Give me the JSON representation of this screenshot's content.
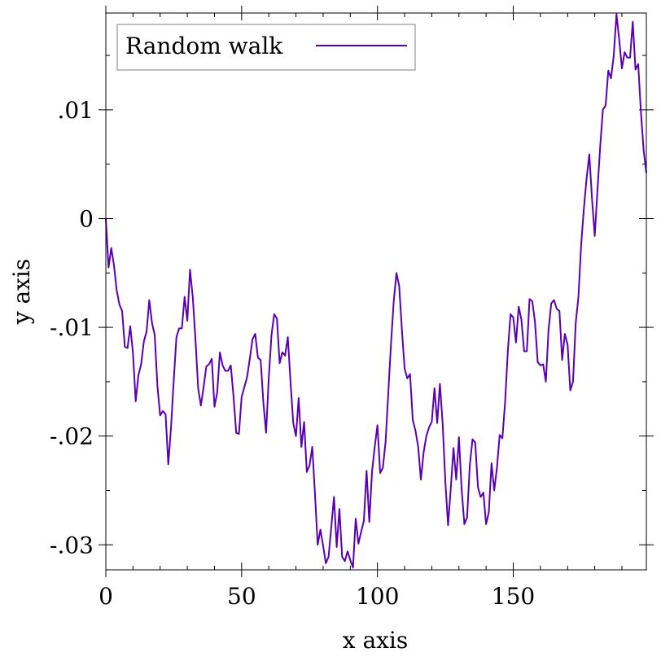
{
  "chart_data": {
    "type": "line",
    "title": "",
    "xlabel": "x axis",
    "ylabel": "y axis",
    "xlim": [
      0,
      199
    ],
    "ylim": [
      -0.0323,
      0.0189
    ],
    "x_ticks": [
      0,
      50,
      100,
      150
    ],
    "x_tick_labels": [
      "0",
      "50",
      "100",
      "150"
    ],
    "x_minor_ticks": [
      10,
      20,
      30,
      40,
      60,
      70,
      80,
      90,
      110,
      120,
      130,
      140,
      160,
      170,
      180,
      190
    ],
    "y_ticks": [
      -0.03,
      -0.02,
      -0.01,
      0,
      0.01
    ],
    "y_tick_labels": [
      "-.03",
      "-.02",
      "-.01",
      "0",
      ".01"
    ],
    "y_minor_ticks": [
      -0.025,
      -0.015,
      -0.005,
      0.005,
      0.015
    ],
    "grid": false,
    "legend_position": "top-left",
    "series": [
      {
        "name": "Random walk",
        "color": "#5a00b4",
        "x": [
          0,
          1,
          2,
          3,
          4,
          5,
          6,
          7,
          8,
          9,
          10,
          11,
          12,
          13,
          14,
          15,
          16,
          17,
          18,
          19,
          20,
          21,
          22,
          23,
          24,
          25,
          26,
          27,
          28,
          29,
          30,
          31,
          32,
          33,
          34,
          35,
          36,
          37,
          38,
          39,
          40,
          41,
          42,
          43,
          44,
          45,
          46,
          47,
          48,
          49,
          50,
          51,
          52,
          53,
          54,
          55,
          56,
          57,
          58,
          59,
          60,
          61,
          62,
          63,
          64,
          65,
          66,
          67,
          68,
          69,
          70,
          71,
          72,
          73,
          74,
          75,
          76,
          77,
          78,
          79,
          80,
          81,
          82,
          83,
          84,
          85,
          86,
          87,
          88,
          89,
          90,
          91,
          92,
          93,
          94,
          95,
          96,
          97,
          98,
          99,
          100,
          101,
          102,
          103,
          104,
          105,
          106,
          107,
          108,
          109,
          110,
          111,
          112,
          113,
          114,
          115,
          116,
          117,
          118,
          119,
          120,
          121,
          122,
          123,
          124,
          125,
          126,
          127,
          128,
          129,
          130,
          131,
          132,
          133,
          134,
          135,
          136,
          137,
          138,
          139,
          140,
          141,
          142,
          143,
          144,
          145,
          146,
          147,
          148,
          149,
          150,
          151,
          152,
          153,
          154,
          155,
          156,
          157,
          158,
          159,
          160,
          161,
          162,
          163,
          164,
          165,
          166,
          167,
          168,
          169,
          170,
          171,
          172,
          173,
          174,
          175,
          176,
          177,
          178,
          179,
          180,
          181,
          182,
          183,
          184,
          185,
          186,
          187,
          188,
          189,
          190,
          191,
          192,
          193,
          194,
          195,
          196,
          197,
          198,
          199
        ],
        "y": [
          0,
          -0.0045,
          -0.0027,
          -0.0043,
          -0.0066,
          -0.0079,
          -0.0085,
          -0.0118,
          -0.0119,
          -0.0099,
          -0.0124,
          -0.0168,
          -0.0144,
          -0.0134,
          -0.0113,
          -0.0104,
          -0.0075,
          -0.0096,
          -0.0107,
          -0.0154,
          -0.0181,
          -0.0177,
          -0.018,
          -0.0226,
          -0.0192,
          -0.0149,
          -0.0109,
          -0.0101,
          -0.0101,
          -0.0072,
          -0.0094,
          -0.0047,
          -0.0072,
          -0.0111,
          -0.0156,
          -0.0172,
          -0.0155,
          -0.0136,
          -0.0134,
          -0.0129,
          -0.0173,
          -0.016,
          -0.0123,
          -0.0135,
          -0.014,
          -0.014,
          -0.0135,
          -0.0163,
          -0.0197,
          -0.0198,
          -0.0164,
          -0.0155,
          -0.0146,
          -0.0129,
          -0.0111,
          -0.0106,
          -0.0128,
          -0.013,
          -0.0169,
          -0.0197,
          -0.0146,
          -0.0107,
          -0.0088,
          -0.0092,
          -0.0133,
          -0.0123,
          -0.0126,
          -0.0109,
          -0.015,
          -0.0188,
          -0.02,
          -0.0165,
          -0.021,
          -0.0187,
          -0.0233,
          -0.0227,
          -0.021,
          -0.0253,
          -0.03,
          -0.0286,
          -0.0301,
          -0.0317,
          -0.0311,
          -0.0284,
          -0.0256,
          -0.0302,
          -0.0267,
          -0.0311,
          -0.0315,
          -0.0306,
          -0.0314,
          -0.0321,
          -0.0276,
          -0.0299,
          -0.0288,
          -0.0278,
          -0.0232,
          -0.0279,
          -0.0233,
          -0.021,
          -0.019,
          -0.0234,
          -0.0229,
          -0.0205,
          -0.016,
          -0.0115,
          -0.0076,
          -0.005,
          -0.0062,
          -0.0102,
          -0.0138,
          -0.0147,
          -0.0143,
          -0.0185,
          -0.0195,
          -0.021,
          -0.024,
          -0.0215,
          -0.02,
          -0.0192,
          -0.0187,
          -0.0156,
          -0.0188,
          -0.0152,
          -0.0188,
          -0.0242,
          -0.0282,
          -0.0248,
          -0.0211,
          -0.024,
          -0.0201,
          -0.0249,
          -0.0281,
          -0.0275,
          -0.0227,
          -0.0203,
          -0.0206,
          -0.0247,
          -0.0256,
          -0.0252,
          -0.0281,
          -0.027,
          -0.0225,
          -0.025,
          -0.0229,
          -0.0199,
          -0.0202,
          -0.0169,
          -0.0122,
          -0.0088,
          -0.0091,
          -0.0114,
          -0.0081,
          -0.0093,
          -0.0122,
          -0.0122,
          -0.0074,
          -0.0076,
          -0.0095,
          -0.0132,
          -0.0135,
          -0.0134,
          -0.015,
          -0.0102,
          -0.0078,
          -0.0075,
          -0.0083,
          -0.0085,
          -0.013,
          -0.0106,
          -0.0116,
          -0.0158,
          -0.015,
          -0.0096,
          -0.0072,
          -0.0024,
          0.0009,
          0.0037,
          0.0059,
          0.0018,
          -0.0016,
          0.0026,
          0.0066,
          0.01,
          0.0104,
          0.0136,
          0.0129,
          0.015,
          0.0188,
          0.0165,
          0.0138,
          0.0153,
          0.0148,
          0.0148,
          0.0181,
          0.0137,
          0.0142,
          0.0098,
          0.0063,
          0.0042
        ]
      }
    ]
  },
  "legend": {
    "label": "Random walk",
    "color": "#5a00b4"
  }
}
